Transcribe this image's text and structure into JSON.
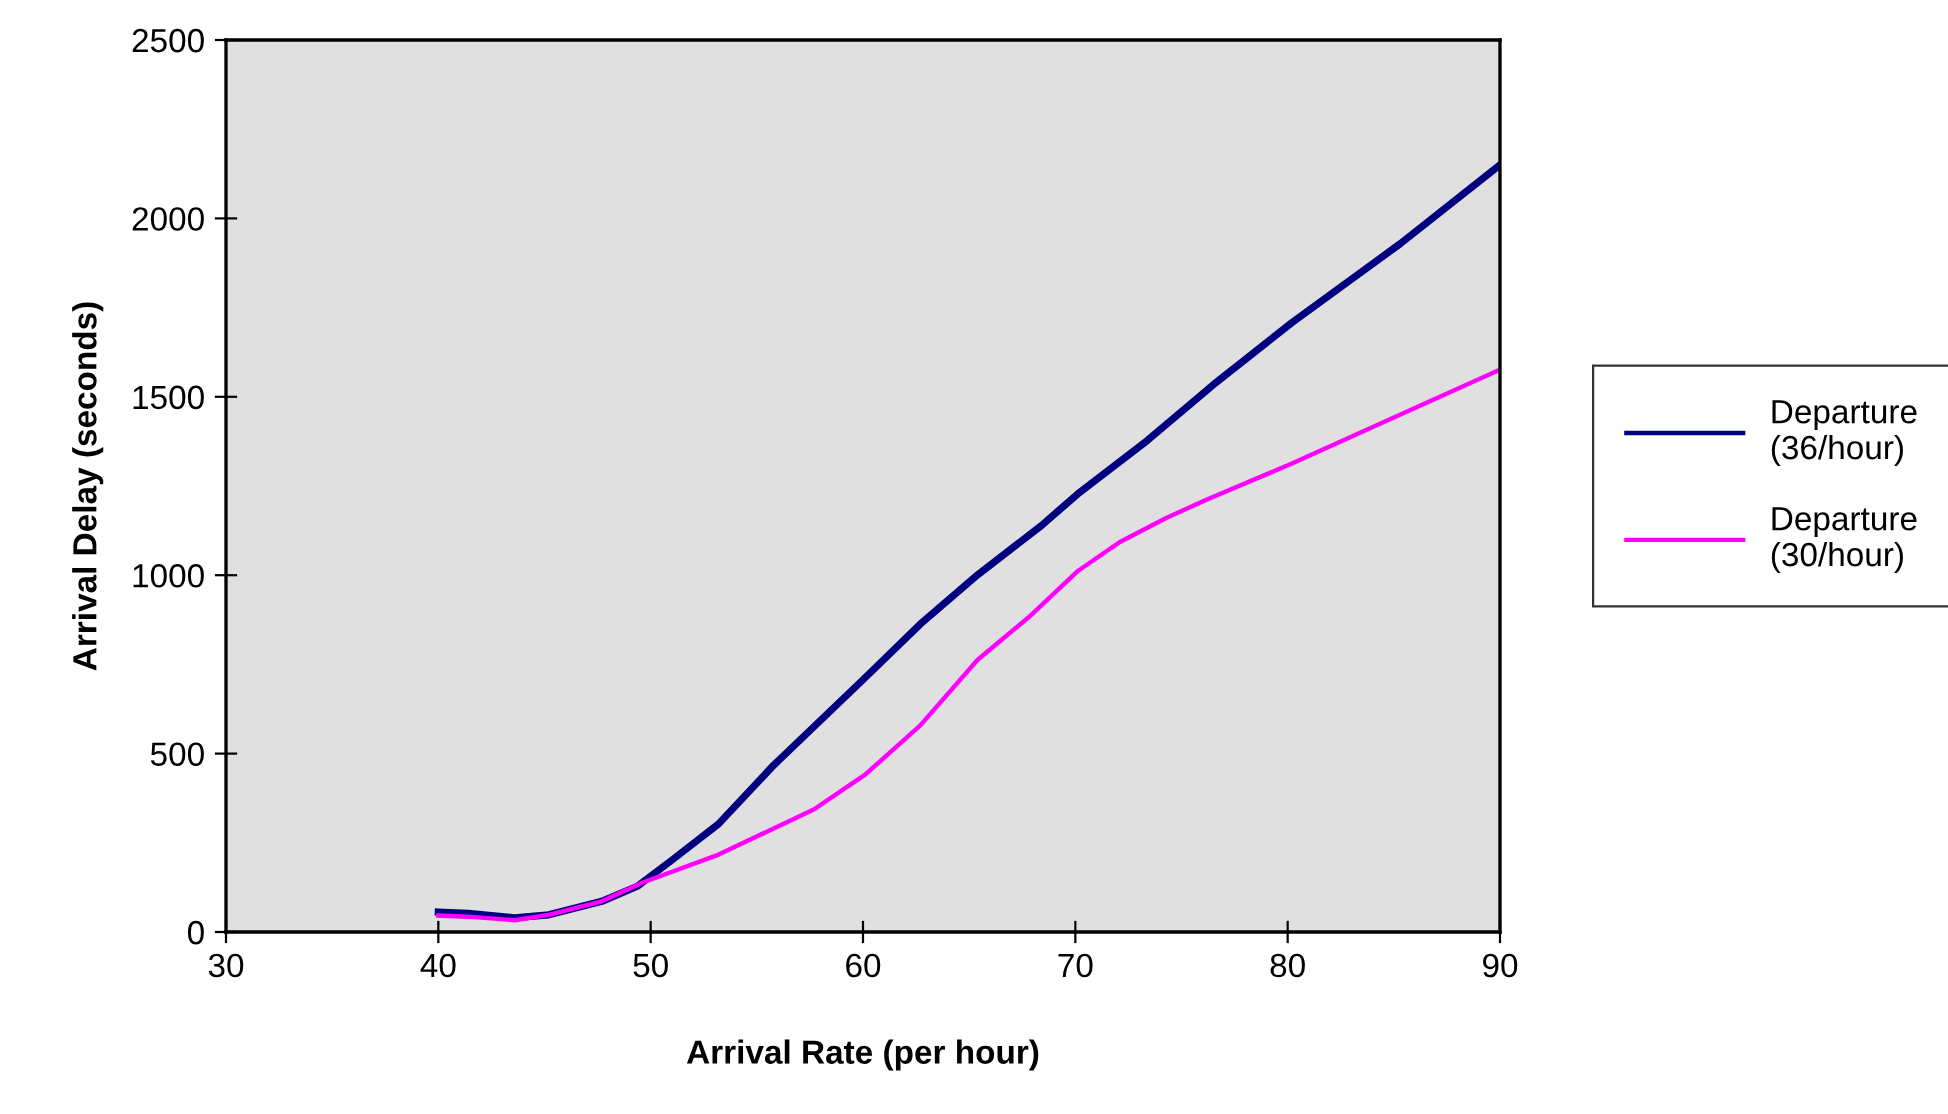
{
  "chart_data": {
    "type": "line",
    "xlabel": "Arrival Rate (per hour)",
    "ylabel": "Arrival Delay (seconds)",
    "xlim": [
      30,
      90
    ],
    "xticks": [
      30,
      40,
      50,
      60,
      70,
      80,
      90
    ],
    "ylim": [
      0,
      2500
    ],
    "yticks": [
      0,
      500,
      1000,
      1500,
      2000,
      2500
    ],
    "grid": false,
    "legend": "right",
    "marker": "none",
    "line_style": "solid",
    "series": [
      {
        "name": "Departure\n(36/hour)",
        "color": "#000080",
        "x": [
          40,
          41.4,
          43.6,
          45.2,
          47.7,
          49.4,
          51.1,
          53.2,
          55.8,
          60.0,
          62.7,
          65.4,
          68.4,
          70.1,
          73.4,
          76.5,
          80.2,
          85.3,
          90
        ],
        "values": [
          56,
          52,
          40,
          48,
          86,
          129,
          206,
          303,
          468,
          707,
          863,
          1001,
          1139,
          1227,
          1378,
          1534,
          1708,
          1929,
          2150
        ]
      },
      {
        "name": "Departure\n(30/hour)",
        "color": "#ff00ff",
        "x": [
          40,
          41.4,
          43.6,
          45.2,
          47.7,
          49.6,
          53.2,
          55.4,
          57.7,
          60.1,
          62.7,
          65.4,
          67.8,
          70.1,
          72.1,
          74.3,
          76.2,
          80.2,
          90
        ],
        "values": [
          46,
          43,
          33,
          48,
          86,
          138,
          217,
          279,
          344,
          441,
          579,
          763,
          882,
          1011,
          1093,
          1161,
          1212,
          1313,
          1576
        ]
      }
    ]
  }
}
